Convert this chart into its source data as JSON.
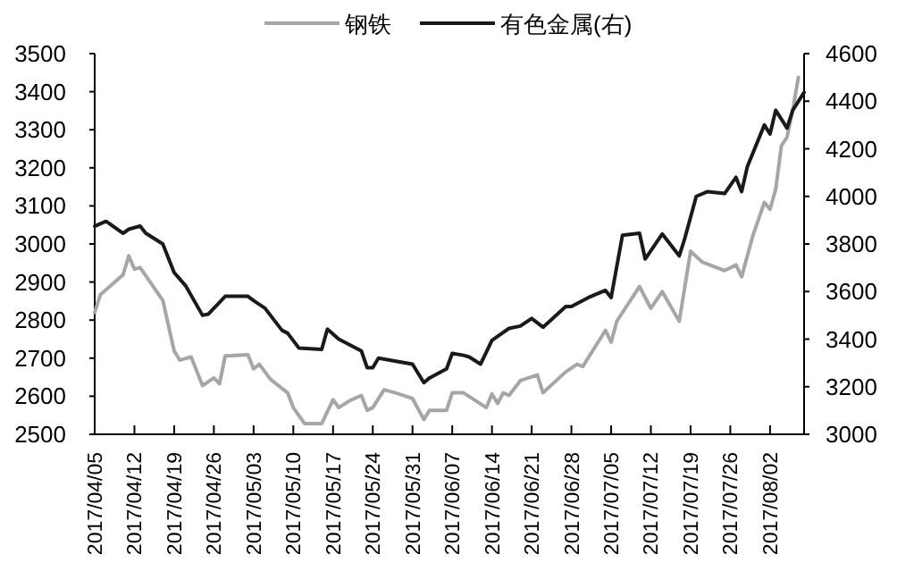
{
  "chart_data": {
    "type": "line",
    "legend": "top",
    "series": [
      {
        "name": "钢铁",
        "color": "#a6a6a6",
        "x": [
          "2017-04-05",
          "2017-04-06",
          "2017-04-10",
          "2017-04-11",
          "2017-04-12",
          "2017-04-13",
          "2017-04-17",
          "2017-04-19",
          "2017-04-20",
          "2017-04-22",
          "2017-04-24",
          "2017-04-26",
          "2017-04-27",
          "2017-04-28",
          "2017-05-02",
          "2017-05-03",
          "2017-05-04",
          "2017-05-06",
          "2017-05-09",
          "2017-05-10",
          "2017-05-12",
          "2017-05-15",
          "2017-05-17",
          "2017-05-18",
          "2017-05-20",
          "2017-05-22",
          "2017-05-23",
          "2017-05-24",
          "2017-05-26",
          "2017-05-28",
          "2017-05-31",
          "2017-06-02",
          "2017-06-03",
          "2017-06-06",
          "2017-06-07",
          "2017-06-09",
          "2017-06-13",
          "2017-06-14",
          "2017-06-15",
          "2017-06-16",
          "2017-06-17",
          "2017-06-19",
          "2017-06-22",
          "2017-06-23",
          "2017-06-27",
          "2017-06-29",
          "2017-06-30",
          "2017-07-04",
          "2017-07-05",
          "2017-07-06",
          "2017-07-10",
          "2017-07-12",
          "2017-07-14",
          "2017-07-17",
          "2017-07-19",
          "2017-07-21",
          "2017-07-25",
          "2017-07-27",
          "2017-07-28",
          "2017-07-30",
          "2017-08-01",
          "2017-08-02",
          "2017-08-03",
          "2017-08-04",
          "2017-08-05",
          "2017-08-06",
          "2017-08-07"
        ],
        "values": [
          2820,
          2867,
          2919,
          2969,
          2934,
          2938,
          2852,
          2719,
          2695,
          2703,
          2628,
          2648,
          2633,
          2706,
          2709,
          2672,
          2684,
          2644,
          2609,
          2570,
          2528,
          2528,
          2591,
          2570,
          2589,
          2602,
          2563,
          2570,
          2617,
          2609,
          2594,
          2539,
          2563,
          2563,
          2609,
          2609,
          2570,
          2606,
          2581,
          2609,
          2602,
          2641,
          2656,
          2609,
          2664,
          2684,
          2678,
          2773,
          2742,
          2797,
          2888,
          2831,
          2875,
          2797,
          2981,
          2953,
          2930,
          2945,
          2914,
          3023,
          3109,
          3091,
          3144,
          3258,
          3281,
          3352,
          3438
        ]
      },
      {
        "name": "有色金属(右)",
        "color": "#1a1a1a",
        "axis": "y2",
        "x": [
          "2017-04-05",
          "2017-04-07",
          "2017-04-10",
          "2017-04-11",
          "2017-04-13",
          "2017-04-14",
          "2017-04-17",
          "2017-04-19",
          "2017-04-21",
          "2017-04-24",
          "2017-04-25",
          "2017-04-28",
          "2017-05-02",
          "2017-05-03",
          "2017-05-05",
          "2017-05-08",
          "2017-05-09",
          "2017-05-11",
          "2017-05-15",
          "2017-05-16",
          "2017-05-18",
          "2017-05-22",
          "2017-05-23",
          "2017-05-24",
          "2017-05-25",
          "2017-05-31",
          "2017-06-02",
          "2017-06-03",
          "2017-06-06",
          "2017-06-07",
          "2017-06-09",
          "2017-06-10",
          "2017-06-12",
          "2017-06-14",
          "2017-06-15",
          "2017-06-17",
          "2017-06-19",
          "2017-06-21",
          "2017-06-23",
          "2017-06-27",
          "2017-06-28",
          "2017-07-01",
          "2017-07-04",
          "2017-07-05",
          "2017-07-07",
          "2017-07-10",
          "2017-07-11",
          "2017-07-14",
          "2017-07-17",
          "2017-07-18",
          "2017-07-20",
          "2017-07-22",
          "2017-07-25",
          "2017-07-27",
          "2017-07-28",
          "2017-07-29",
          "2017-08-01",
          "2017-08-02",
          "2017-08-03",
          "2017-08-05",
          "2017-08-06",
          "2017-08-08"
        ],
        "values": [
          3875,
          3895,
          3845,
          3862,
          3875,
          3845,
          3800,
          3680,
          3625,
          3500,
          3505,
          3580,
          3580,
          3562,
          3530,
          3437,
          3425,
          3362,
          3357,
          3442,
          3400,
          3350,
          3280,
          3280,
          3320,
          3295,
          3217,
          3237,
          3275,
          3340,
          3332,
          3325,
          3295,
          3395,
          3412,
          3445,
          3455,
          3487,
          3450,
          3537,
          3537,
          3575,
          3605,
          3575,
          3837,
          3845,
          3737,
          3842,
          3750,
          3825,
          4000,
          4020,
          4012,
          4080,
          4020,
          4125,
          4300,
          4262,
          4362,
          4287,
          4362,
          4437
        ]
      }
    ],
    "xlim": [
      "2017-04-05",
      "2017-08-08"
    ],
    "xticks": [
      {
        "value": "2017-04-05",
        "label": "2017/04/05"
      },
      {
        "value": "2017-04-12",
        "label": "2017/04/12"
      },
      {
        "value": "2017-04-19",
        "label": "2017/04/19"
      },
      {
        "value": "2017-04-26",
        "label": "2017/04/26"
      },
      {
        "value": "2017-05-03",
        "label": "2017/05/03"
      },
      {
        "value": "2017-05-10",
        "label": "2017/05/10"
      },
      {
        "value": "2017-05-17",
        "label": "2017/05/17"
      },
      {
        "value": "2017-05-24",
        "label": "2017/05/24"
      },
      {
        "value": "2017-05-31",
        "label": "2017/05/31"
      },
      {
        "value": "2017-06-07",
        "label": "2017/06/07"
      },
      {
        "value": "2017-06-14",
        "label": "2017/06/14"
      },
      {
        "value": "2017-06-21",
        "label": "2017/06/21"
      },
      {
        "value": "2017-06-28",
        "label": "2017/06/28"
      },
      {
        "value": "2017-07-05",
        "label": "2017/07/05"
      },
      {
        "value": "2017-07-12",
        "label": "2017/07/12"
      },
      {
        "value": "2017-07-19",
        "label": "2017/07/19"
      },
      {
        "value": "2017-07-26",
        "label": "2017/07/26"
      },
      {
        "value": "2017-08-02",
        "label": "2017/08/02"
      }
    ],
    "ylim": [
      2500,
      3500
    ],
    "yticks": [
      2500,
      2600,
      2700,
      2800,
      2900,
      3000,
      3100,
      3200,
      3300,
      3400,
      3500
    ],
    "y2lim": [
      3000,
      4600
    ],
    "y2ticks": [
      3000,
      3200,
      3400,
      3600,
      3800,
      4000,
      4200,
      4400,
      4600
    ]
  }
}
